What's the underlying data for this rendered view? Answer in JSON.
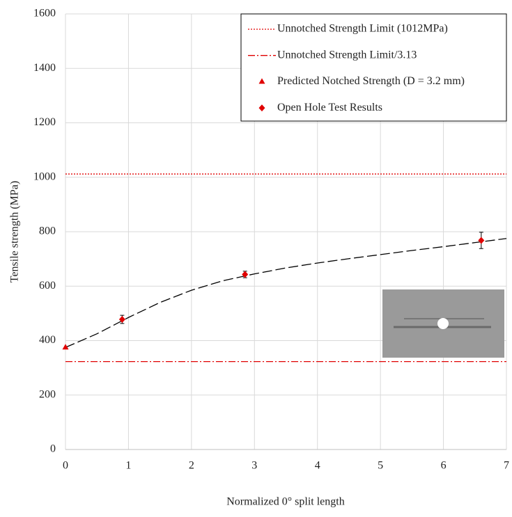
{
  "chart_data": {
    "type": "composite",
    "xlabel": "Normalized 0° split length",
    "ylabel": "Tensile strength (MPa)",
    "xlim": [
      0,
      7
    ],
    "xticks": [
      0,
      1,
      2,
      3,
      4,
      5,
      6,
      7
    ],
    "ylim": [
      0,
      1600
    ],
    "yticks": [
      0,
      200,
      400,
      600,
      800,
      1000,
      1200,
      1400,
      1600
    ],
    "grid": true,
    "legend": "upper right",
    "series": [
      {
        "name": "Unnotched Strength Limit (1012MPa)",
        "color": "#e00000",
        "kind": "hline",
        "line_style": "dotted",
        "y": 1012
      },
      {
        "name": "Unnotched Strength Limit/3.13",
        "color": "#e00000",
        "kind": "hline",
        "line_style": "dash-dot",
        "y": 323
      },
      {
        "name": "Predicted Notched Strength (D = 3.2 mm)",
        "color": "#e00000",
        "kind": "scatter",
        "marker": "triangle",
        "x": [
          0
        ],
        "values": [
          375
        ]
      },
      {
        "name": "Open Hole Test Results",
        "color": "#e00000",
        "kind": "scatter",
        "marker": "diamond",
        "x": [
          0.9,
          2.85,
          6.6
        ],
        "values": [
          478,
          643,
          768
        ],
        "errors": [
          15,
          12,
          30
        ]
      },
      {
        "color": "#000000",
        "kind": "line",
        "line_style": "dashed",
        "x": [
          0,
          0.5,
          1,
          1.5,
          2,
          2.5,
          3,
          3.5,
          4,
          4.5,
          5,
          5.5,
          6,
          6.5,
          7
        ],
        "values": [
          375,
          425,
          485,
          540,
          585,
          620,
          645,
          667,
          685,
          701,
          716,
          731,
          745,
          760,
          775
        ]
      }
    ]
  }
}
